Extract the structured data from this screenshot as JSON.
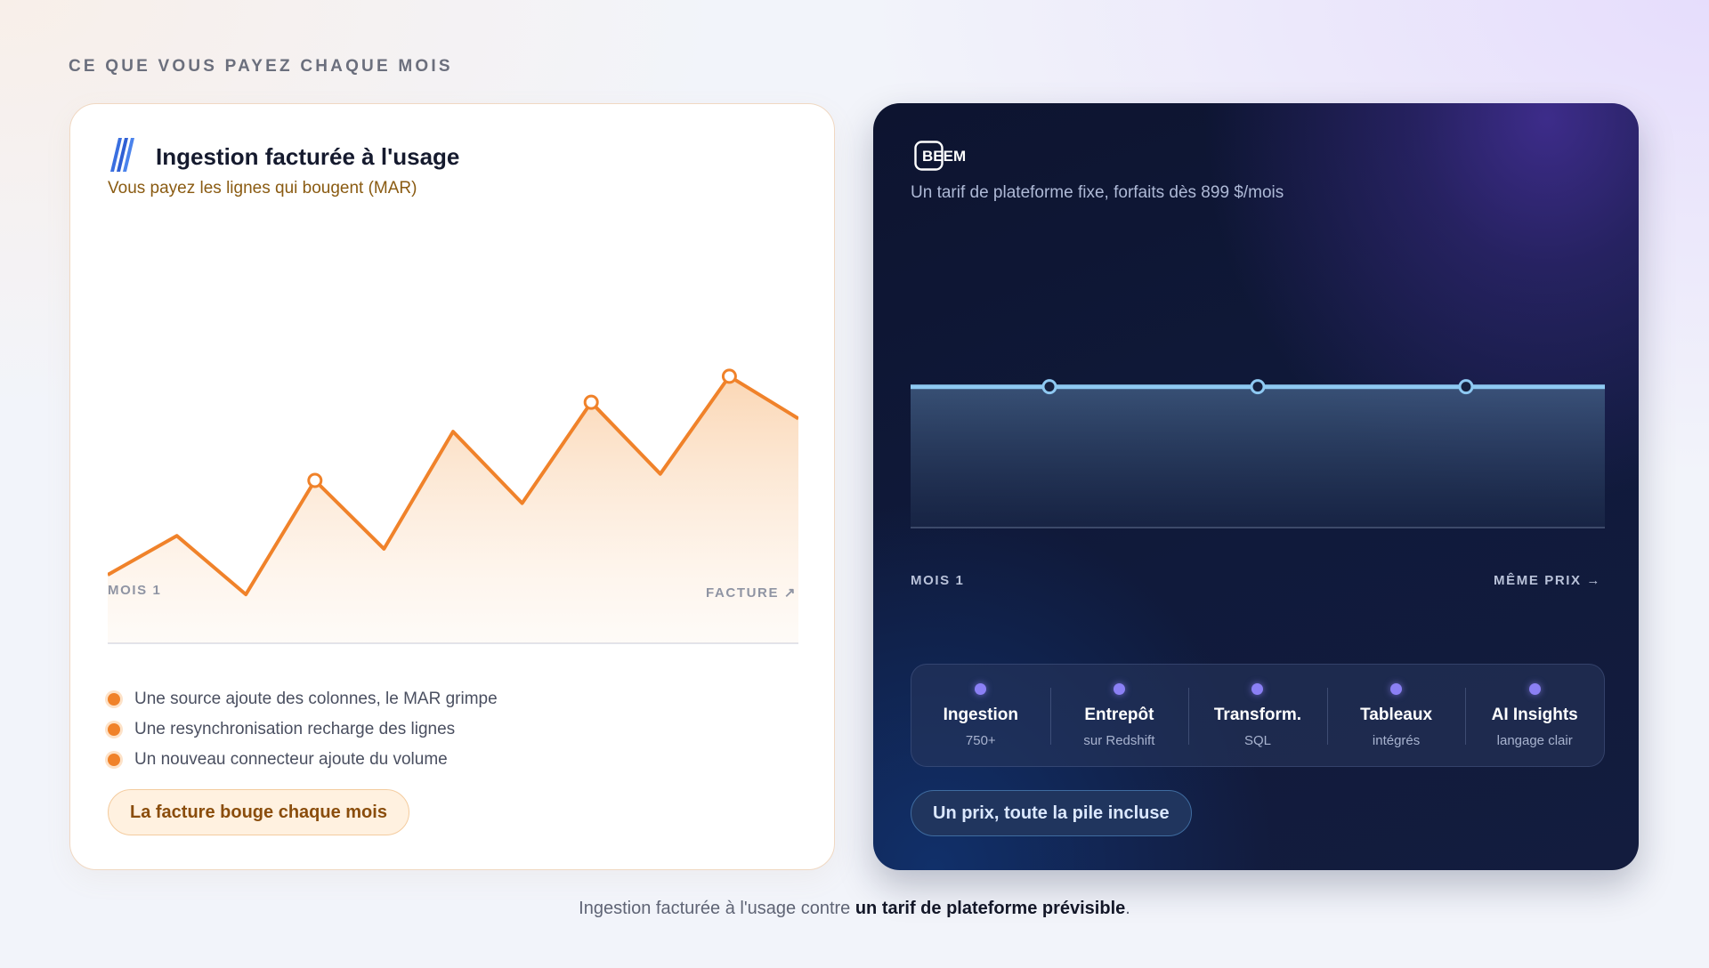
{
  "eyebrow": "CE QUE VOUS PAYEZ CHAQUE MOIS",
  "left": {
    "title": "Ingestion facturée à l'usage",
    "subtitle": "Vous payez les lignes qui bougent (MAR)",
    "axis_start": "MOIS 1",
    "axis_end": "FACTURE ↗",
    "bullets": [
      "Une source ajoute des colonnes, le MAR grimpe",
      "Une resynchronisation recharge des lignes",
      "Un nouveau connecteur ajoute du volume"
    ],
    "pill": "La facture bouge chaque mois",
    "logo_icon": "stripes-logo-icon"
  },
  "right": {
    "logo_text": "BEEM",
    "subtitle": "Un tarif de plateforme fixe, forfaits dès 899 $/mois",
    "axis_start": "MOIS 1",
    "axis_end": "MÊME PRIX →",
    "features": [
      {
        "title": "Ingestion",
        "sub": "750+"
      },
      {
        "title": "Entrepôt",
        "sub": "sur Redshift"
      },
      {
        "title": "Transform.",
        "sub": "SQL"
      },
      {
        "title": "Tableaux",
        "sub": "intégrés"
      },
      {
        "title": "AI Insights",
        "sub": "langage clair"
      }
    ],
    "pill": "Un prix, toute la pile incluse"
  },
  "caption": {
    "prefix": "Ingestion facturée à l'usage contre ",
    "bold": "un tarif de plateforme prévisible",
    "suffix": "."
  },
  "colors": {
    "usage_line": "#f0822a",
    "flat_line": "#8ec9f2",
    "feature_dot": "#8b80f5"
  },
  "chart_data": [
    {
      "type": "area",
      "title": "",
      "xlabel": "",
      "ylabel": "",
      "series": [
        {
          "values": [
            0.21,
            0.33,
            0.15,
            0.5,
            0.29,
            0.65,
            0.43,
            0.74,
            0.52,
            0.82,
            0.69
          ]
        }
      ],
      "highlighted_indices": [
        3,
        7,
        9
      ],
      "ylim": [
        0,
        1
      ],
      "grid": false
    },
    {
      "type": "area",
      "title": "",
      "xlabel": "",
      "ylabel": "",
      "series": [
        {
          "values": [
            1,
            1,
            1,
            1,
            1,
            1,
            1,
            1,
            1,
            1,
            1
          ]
        }
      ],
      "highlighted_indices": [
        2,
        5,
        8
      ],
      "ylim": [
        0,
        1.2
      ],
      "grid": false
    }
  ]
}
